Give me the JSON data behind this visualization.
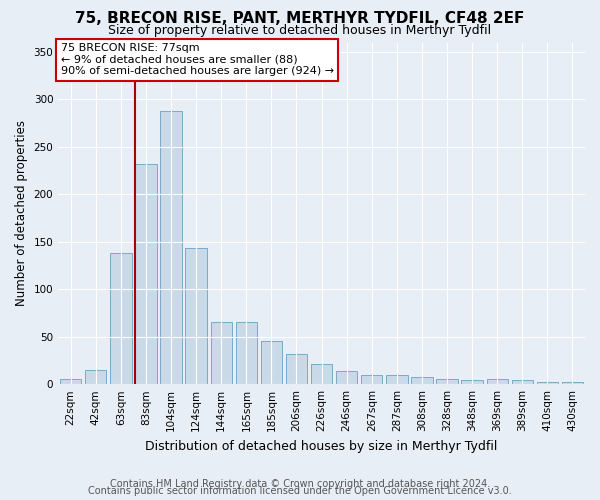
{
  "title": "75, BRECON RISE, PANT, MERTHYR TYDFIL, CF48 2EF",
  "subtitle": "Size of property relative to detached houses in Merthyr Tydfil",
  "xlabel": "Distribution of detached houses by size in Merthyr Tydfil",
  "ylabel": "Number of detached properties",
  "categories": [
    "22sqm",
    "42sqm",
    "63sqm",
    "83sqm",
    "104sqm",
    "124sqm",
    "144sqm",
    "165sqm",
    "185sqm",
    "206sqm",
    "226sqm",
    "246sqm",
    "267sqm",
    "287sqm",
    "308sqm",
    "328sqm",
    "348sqm",
    "369sqm",
    "389sqm",
    "410sqm",
    "430sqm"
  ],
  "values": [
    5,
    15,
    138,
    232,
    288,
    144,
    65,
    65,
    46,
    32,
    21,
    14,
    10,
    10,
    8,
    5,
    4,
    5,
    4,
    2,
    2
  ],
  "bar_color": "#c9d9e8",
  "bar_edge_color": "#7aaac8",
  "vline_color": "#aa0000",
  "annotation_text": "75 BRECON RISE: 77sqm\n← 9% of detached houses are smaller (88)\n90% of semi-detached houses are larger (924) →",
  "annotation_box_color": "#ffffff",
  "annotation_box_edge": "#cc0000",
  "ylim": [
    0,
    360
  ],
  "yticks": [
    0,
    50,
    100,
    150,
    200,
    250,
    300,
    350
  ],
  "background_color": "#e8eef5",
  "plot_background": "#e8eef5",
  "footer_line1": "Contains HM Land Registry data © Crown copyright and database right 2024.",
  "footer_line2": "Contains public sector information licensed under the Open Government Licence v3.0.",
  "title_fontsize": 11,
  "subtitle_fontsize": 9,
  "xlabel_fontsize": 9,
  "ylabel_fontsize": 8.5,
  "tick_fontsize": 7.5,
  "annotation_fontsize": 8,
  "footer_fontsize": 7
}
